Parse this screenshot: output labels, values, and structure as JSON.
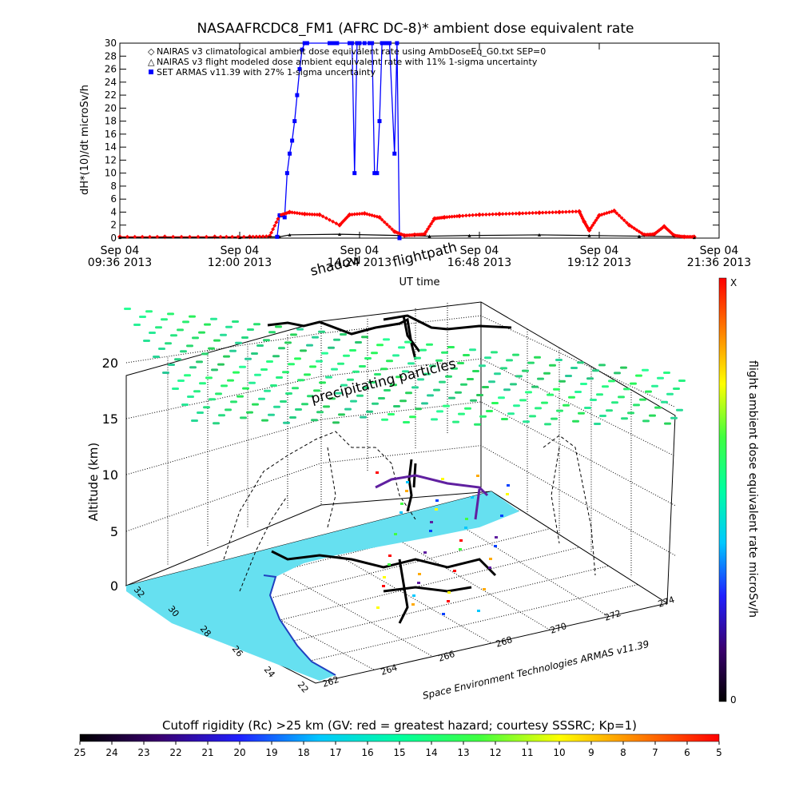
{
  "chart_data": [
    {
      "type": "line",
      "title": "NASAAFRCDC8_FM1 (AFRC DC-8)* ambient dose equivalent rate",
      "xlabel": "UT time",
      "ylabel": "dH*(10)/dt microSv/h",
      "ylim": [
        0,
        30
      ],
      "xlim_hours": [
        9.6,
        21.6
      ],
      "y_ticks": [
        "0",
        "2",
        "4",
        "6",
        "8",
        "10",
        "12",
        "14",
        "16",
        "18",
        "20",
        "22",
        "24",
        "26",
        "28",
        "30"
      ],
      "x_ticks": [
        {
          "date": "Sep 04",
          "time": "09:36 2013"
        },
        {
          "date": "Sep 04",
          "time": "12:00 2013"
        },
        {
          "date": "Sep 04",
          "time": "14:24 2013"
        },
        {
          "date": "Sep 04",
          "time": "16:48 2013"
        },
        {
          "date": "Sep 04",
          "time": "19:12 2013"
        },
        {
          "date": "Sep 04",
          "time": "21:36 2013"
        }
      ],
      "legend": [
        {
          "symbol": "◇",
          "color": "#ff0000",
          "label": "NAIRAS v3 climatological ambient dose equivalent rate using AmbDoseEq_G0.txt SEP=0"
        },
        {
          "symbol": "△",
          "color": "#000000",
          "label": "NAIRAS v3 flight modeled dose ambient equivalent rate with 11% 1-sigma uncertainty"
        },
        {
          "symbol": "■",
          "color": "#0000ff",
          "label": "SET ARMAS v11.39 with 27% 1-sigma uncertainty"
        }
      ],
      "legend_position": "top-left",
      "series": [
        {
          "name": "NAIRAS v3 climatological ambient dose equivalent rate using AmbDoseEq_G0.txt SEP=0",
          "color": "#ff0000",
          "x": [
            9.6,
            10.5,
            11.5,
            12.2,
            12.6,
            12.8,
            13.0,
            13.3,
            13.6,
            14.0,
            14.2,
            14.5,
            14.8,
            15.1,
            15.3,
            15.5,
            15.7,
            15.9,
            16.1,
            16.4,
            16.8,
            17.2,
            17.6,
            18.0,
            18.4,
            18.8,
            18.9,
            19.0,
            19.2,
            19.5,
            19.8,
            20.1,
            20.3,
            20.5,
            20.7,
            20.9,
            21.1
          ],
          "y": [
            0.2,
            0.2,
            0.2,
            0.2,
            0.3,
            3.5,
            4.0,
            3.7,
            3.6,
            2.0,
            3.6,
            3.8,
            3.2,
            1.0,
            0.4,
            0.5,
            0.6,
            3.0,
            3.2,
            3.4,
            3.6,
            3.7,
            3.8,
            3.9,
            4.0,
            4.1,
            2.5,
            1.2,
            3.5,
            4.2,
            2.0,
            0.5,
            0.6,
            1.8,
            0.4,
            0.2,
            0.2
          ]
        },
        {
          "name": "NAIRAS v3 flight modeled dose ambient equivalent rate with 11% 1-sigma uncertainty",
          "color": "#000000",
          "x": [
            9.6,
            12.0,
            12.8,
            13.0,
            14.0,
            15.2,
            15.8,
            16.6,
            18.0,
            19.0,
            20.0,
            21.0,
            21.1
          ],
          "y": [
            0.1,
            0.1,
            0.2,
            0.5,
            0.6,
            0.4,
            0.3,
            0.4,
            0.5,
            0.4,
            0.3,
            0.2,
            0.1
          ]
        },
        {
          "name": "SET ARMAS v11.39 with 27% 1-sigma uncertainty",
          "color": "#0000ff",
          "x": [
            12.75,
            12.8,
            12.85,
            12.9,
            12.95,
            13.0,
            13.05,
            13.1,
            13.15,
            13.2,
            13.25,
            13.3,
            13.35,
            13.8,
            13.85,
            13.9,
            13.95,
            14.2,
            14.25,
            14.3,
            14.35,
            14.4,
            14.5,
            14.6,
            14.65,
            14.7,
            14.75,
            14.8,
            14.85,
            14.9,
            14.95,
            15.0,
            15.1,
            15.15,
            15.2
          ],
          "y": [
            0.2,
            3.5,
            3.5,
            3.2,
            10.0,
            13.0,
            15.0,
            18.0,
            22.0,
            26.0,
            29.0,
            30,
            30,
            30,
            30,
            30,
            30,
            30,
            30,
            10.0,
            30,
            30,
            30,
            30,
            30,
            10.0,
            10.0,
            18.0,
            30,
            30,
            30,
            30,
            13.0,
            30,
            0
          ]
        }
      ]
    },
    {
      "type": "scatter",
      "title": "",
      "zlabel": "Altitude (km)",
      "z_ticks": [
        "0",
        "5",
        "10",
        "15",
        "20"
      ],
      "lat_ticks": [
        "22",
        "24",
        "26",
        "28",
        "30",
        "32"
      ],
      "lon_ticks": [
        "262",
        "264",
        "266",
        "268",
        "270",
        "272",
        "274"
      ],
      "annotations": [
        "shadow",
        "flightpath",
        "precipitating particles",
        "Space Environment Technologies ARMAS v11.39"
      ],
      "grid": true
    }
  ],
  "colorbars": {
    "dose": {
      "label": "flight ambient dose equivalent rate microSv/h",
      "top_label": "X",
      "bottom_label": "0",
      "colors": [
        "#000000",
        "#3a0070",
        "#2020ff",
        "#00c8ff",
        "#00ffa0",
        "#40ff40",
        "#ffff00",
        "#ff8000",
        "#ff0000"
      ]
    },
    "cutoff": {
      "label": "Cutoff rigidity (Rc) >25 km (GV: red = greatest hazard; courtesy SSSRC; Kp=1)",
      "ticks": [
        "25",
        "24",
        "23",
        "22",
        "21",
        "20",
        "19",
        "18",
        "17",
        "16",
        "15",
        "14",
        "13",
        "12",
        "11",
        "10",
        "9",
        "8",
        "7",
        "6",
        "5"
      ],
      "colors": [
        "#000000",
        "#3a0070",
        "#2020ff",
        "#00c8ff",
        "#00ffa0",
        "#40ff40",
        "#ffff00",
        "#ff8000",
        "#ff0000"
      ]
    }
  }
}
